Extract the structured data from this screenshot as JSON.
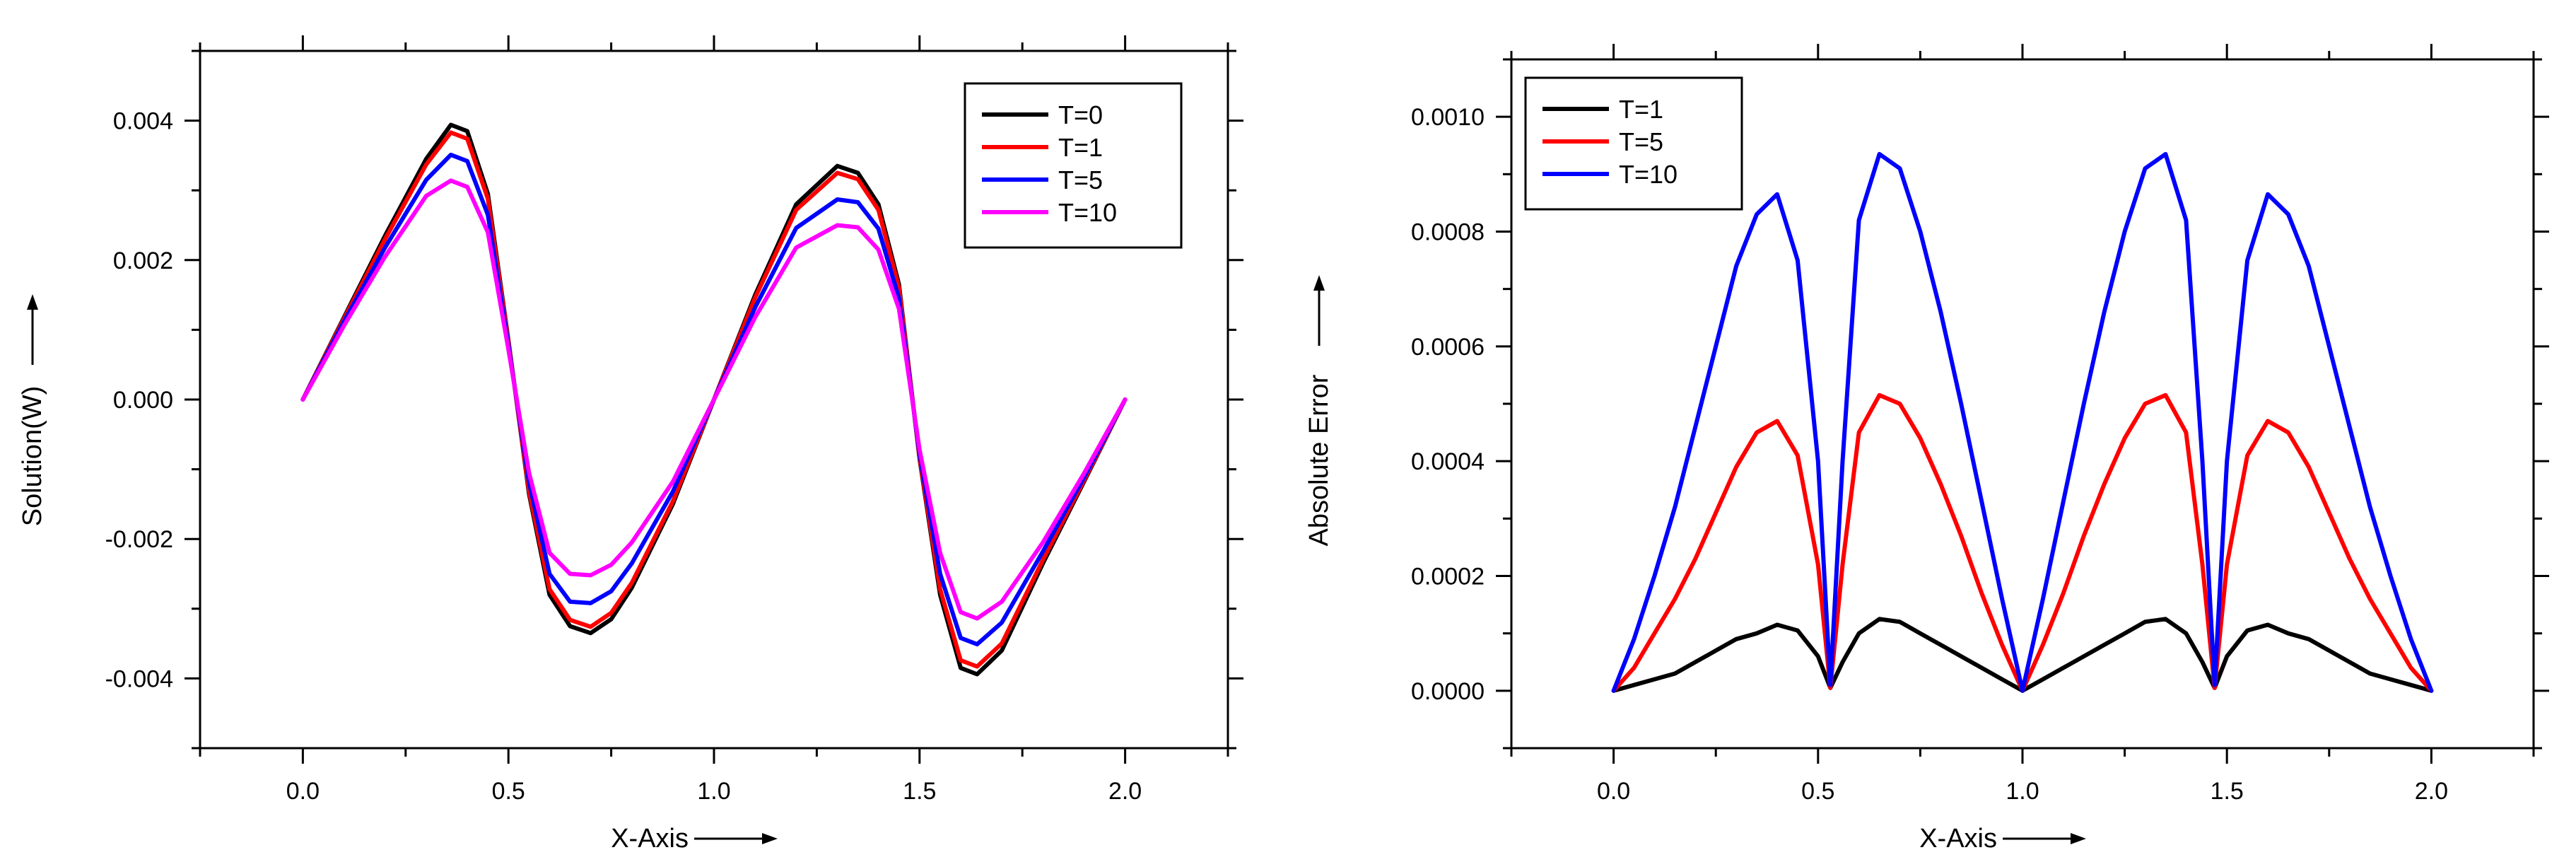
{
  "charts": [
    {
      "type": "line",
      "xlabel": "X-Axis",
      "ylabel": "Solution(W)",
      "xlim": [
        -0.25,
        2.25
      ],
      "ylim": [
        -0.005,
        0.005
      ],
      "xticks": [
        0.0,
        0.5,
        1.0,
        1.5,
        2.0
      ],
      "xtick_labels": [
        "0.0",
        "0.5",
        "1.0",
        "1.5",
        "2.0"
      ],
      "yticks": [
        -0.004,
        -0.002,
        0.0,
        0.002,
        0.004
      ],
      "ytick_labels": [
        "-0.004",
        "-0.002",
        "0.000",
        "0.002",
        "0.004"
      ],
      "legend_position": "top-right",
      "series": [
        {
          "name": "T=0",
          "color": "#000000",
          "x": [
            0.0,
            0.1,
            0.2,
            0.3,
            0.36,
            0.4,
            0.45,
            0.5,
            0.55,
            0.6,
            0.65,
            0.7,
            0.75,
            0.8,
            0.9,
            1.0,
            1.1,
            1.2,
            1.3,
            1.35,
            1.4,
            1.45,
            1.5,
            1.55,
            1.6,
            1.64,
            1.7,
            1.8,
            1.9,
            2.0
          ],
          "values": [
            0.0,
            0.00118,
            0.00235,
            0.00345,
            0.00394,
            0.00385,
            0.00295,
            0.00085,
            -0.00135,
            -0.0028,
            -0.00325,
            -0.00335,
            -0.00315,
            -0.0027,
            -0.0015,
            0.0,
            0.0015,
            0.0028,
            0.00335,
            0.00325,
            0.0028,
            0.00165,
            -0.00085,
            -0.0028,
            -0.00385,
            -0.00394,
            -0.0036,
            -0.00235,
            -0.00118,
            0.0
          ]
        },
        {
          "name": "T=1",
          "color": "#ff0000",
          "x": [
            0.0,
            0.1,
            0.2,
            0.3,
            0.36,
            0.4,
            0.45,
            0.5,
            0.55,
            0.6,
            0.65,
            0.7,
            0.75,
            0.8,
            0.9,
            1.0,
            1.1,
            1.2,
            1.3,
            1.35,
            1.4,
            1.45,
            1.5,
            1.55,
            1.6,
            1.64,
            1.7,
            1.8,
            1.9,
            2.0
          ],
          "values": [
            0.0,
            0.00116,
            0.0023,
            0.00337,
            0.00383,
            0.00374,
            0.00288,
            0.00083,
            -0.00131,
            -0.00272,
            -0.00316,
            -0.00326,
            -0.00306,
            -0.00263,
            -0.00146,
            0.0,
            0.00146,
            0.00272,
            0.00325,
            0.00316,
            0.00272,
            0.0016,
            -0.00083,
            -0.00272,
            -0.00374,
            -0.00383,
            -0.0035,
            -0.0023,
            -0.00116,
            0.0
          ]
        },
        {
          "name": "T=5",
          "color": "#0000ff",
          "x": [
            0.0,
            0.1,
            0.2,
            0.3,
            0.36,
            0.4,
            0.45,
            0.5,
            0.55,
            0.6,
            0.65,
            0.7,
            0.75,
            0.8,
            0.9,
            1.0,
            1.1,
            1.2,
            1.3,
            1.35,
            1.4,
            1.45,
            1.5,
            1.55,
            1.6,
            1.64,
            1.7,
            1.8,
            1.9,
            2.0
          ],
          "values": [
            0.0,
            0.00112,
            0.00218,
            0.00315,
            0.00351,
            0.00342,
            0.00265,
            0.00078,
            -0.00118,
            -0.0025,
            -0.0029,
            -0.00292,
            -0.00275,
            -0.00235,
            -0.00132,
            0.0,
            0.00132,
            0.00246,
            0.00287,
            0.00283,
            0.00245,
            0.00145,
            -0.00078,
            -0.0025,
            -0.00342,
            -0.00351,
            -0.0032,
            -0.00218,
            -0.00112,
            0.0
          ]
        },
        {
          "name": "T=10",
          "color": "#ff00ff",
          "x": [
            0.0,
            0.1,
            0.2,
            0.3,
            0.36,
            0.4,
            0.45,
            0.5,
            0.55,
            0.6,
            0.65,
            0.7,
            0.75,
            0.8,
            0.9,
            1.0,
            1.1,
            1.2,
            1.3,
            1.35,
            1.4,
            1.45,
            1.5,
            1.55,
            1.6,
            1.64,
            1.7,
            1.8,
            1.9,
            2.0
          ],
          "values": [
            0.0,
            0.00106,
            0.00205,
            0.00292,
            0.00314,
            0.00305,
            0.0024,
            0.00072,
            -0.00105,
            -0.0022,
            -0.0025,
            -0.00252,
            -0.00237,
            -0.00205,
            -0.00118,
            0.0,
            0.00118,
            0.00218,
            0.0025,
            0.00247,
            0.00215,
            0.0013,
            -0.00072,
            -0.0022,
            -0.00305,
            -0.00314,
            -0.0029,
            -0.00205,
            -0.00106,
            0.0
          ]
        }
      ]
    },
    {
      "type": "line",
      "xlabel": "X-Axis",
      "ylabel": "Absolute Error",
      "xlim": [
        -0.25,
        2.25
      ],
      "ylim": [
        -0.0001,
        0.0011
      ],
      "xticks": [
        0.0,
        0.5,
        1.0,
        1.5,
        2.0
      ],
      "xtick_labels": [
        "0.0",
        "0.5",
        "1.0",
        "1.5",
        "2.0"
      ],
      "yticks": [
        0.0,
        0.0002,
        0.0004,
        0.0006,
        0.0008,
        0.001
      ],
      "ytick_labels": [
        "0.0000",
        "0.0002",
        "0.0004",
        "0.0006",
        "0.0008",
        "0.0010"
      ],
      "legend_position": "top-left",
      "series": [
        {
          "name": "T=1",
          "color": "#000000",
          "x": [
            0.0,
            0.05,
            0.1,
            0.15,
            0.2,
            0.25,
            0.3,
            0.35,
            0.4,
            0.45,
            0.5,
            0.53,
            0.56,
            0.6,
            0.65,
            0.7,
            0.75,
            0.8,
            0.85,
            0.9,
            0.95,
            1.0,
            1.05,
            1.1,
            1.15,
            1.2,
            1.25,
            1.3,
            1.35,
            1.4,
            1.44,
            1.47,
            1.5,
            1.55,
            1.6,
            1.65,
            1.7,
            1.75,
            1.8,
            1.85,
            1.9,
            1.95,
            2.0
          ],
          "values": [
            0.0,
            1e-05,
            2e-05,
            3e-05,
            5e-05,
            7e-05,
            9e-05,
            0.0001,
            0.000115,
            0.000105,
            6e-05,
            5e-06,
            5e-05,
            0.0001,
            0.000125,
            0.00012,
            0.0001,
            8e-05,
            6e-05,
            4e-05,
            2e-05,
            0.0,
            2e-05,
            4e-05,
            6e-05,
            8e-05,
            0.0001,
            0.00012,
            0.000125,
            0.0001,
            5e-05,
            5e-06,
            6e-05,
            0.000105,
            0.000115,
            0.0001,
            9e-05,
            7e-05,
            5e-05,
            3e-05,
            2e-05,
            1e-05,
            0.0
          ]
        },
        {
          "name": "T=5",
          "color": "#ff0000",
          "x": [
            0.0,
            0.05,
            0.1,
            0.15,
            0.2,
            0.25,
            0.3,
            0.35,
            0.4,
            0.45,
            0.5,
            0.53,
            0.56,
            0.6,
            0.65,
            0.7,
            0.75,
            0.8,
            0.85,
            0.9,
            0.95,
            1.0,
            1.05,
            1.1,
            1.15,
            1.2,
            1.25,
            1.3,
            1.35,
            1.4,
            1.44,
            1.47,
            1.5,
            1.55,
            1.6,
            1.65,
            1.7,
            1.75,
            1.8,
            1.85,
            1.9,
            1.95,
            2.0
          ],
          "values": [
            0.0,
            4e-05,
            0.0001,
            0.00016,
            0.00023,
            0.00031,
            0.00039,
            0.00045,
            0.00047,
            0.00041,
            0.00022,
            5e-06,
            0.00022,
            0.00045,
            0.000515,
            0.0005,
            0.00044,
            0.00036,
            0.00027,
            0.00017,
            8e-05,
            0.0,
            8e-05,
            0.00017,
            0.00027,
            0.00036,
            0.00044,
            0.0005,
            0.000515,
            0.00045,
            0.00022,
            5e-06,
            0.00022,
            0.00041,
            0.00047,
            0.00045,
            0.00039,
            0.00031,
            0.00023,
            0.00016,
            0.0001,
            4e-05,
            0.0
          ]
        },
        {
          "name": "T=10",
          "color": "#0000ff",
          "x": [
            0.0,
            0.05,
            0.1,
            0.15,
            0.2,
            0.25,
            0.3,
            0.35,
            0.4,
            0.45,
            0.5,
            0.53,
            0.56,
            0.6,
            0.65,
            0.7,
            0.75,
            0.8,
            0.85,
            0.9,
            0.95,
            1.0,
            1.05,
            1.1,
            1.15,
            1.2,
            1.25,
            1.3,
            1.35,
            1.4,
            1.44,
            1.47,
            1.5,
            1.55,
            1.6,
            1.65,
            1.7,
            1.75,
            1.8,
            1.85,
            1.9,
            1.95,
            2.0
          ],
          "values": [
            0.0,
            9e-05,
            0.0002,
            0.00032,
            0.00046,
            0.0006,
            0.00074,
            0.00083,
            0.000865,
            0.00075,
            0.0004,
            1e-05,
            0.0004,
            0.00082,
            0.000935,
            0.00091,
            0.0008,
            0.00066,
            0.0005,
            0.00033,
            0.00016,
            0.0,
            0.00016,
            0.00033,
            0.0005,
            0.00066,
            0.0008,
            0.00091,
            0.000935,
            0.00082,
            0.0004,
            1e-05,
            0.0004,
            0.00075,
            0.000865,
            0.00083,
            0.00074,
            0.0006,
            0.00046,
            0.00032,
            0.0002,
            9e-05,
            0.0
          ]
        }
      ]
    }
  ]
}
